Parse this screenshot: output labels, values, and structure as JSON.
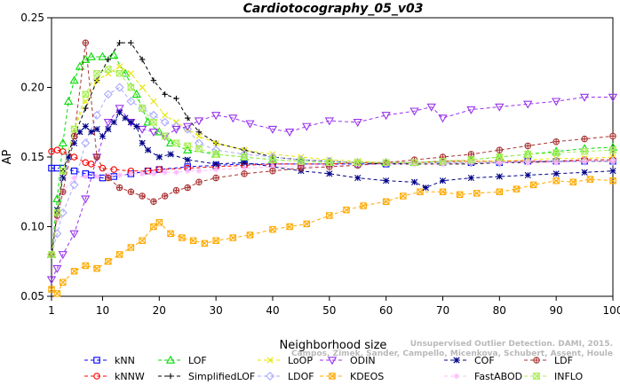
{
  "chart_data": {
    "type": "line",
    "title": "Cardiotocography_05_v03",
    "xlabel": "Neighborhood size",
    "ylabel": "AP",
    "xlim": [
      1,
      100
    ],
    "ylim": [
      0.05,
      0.25
    ],
    "xticks": [
      1,
      10,
      20,
      30,
      40,
      50,
      60,
      70,
      80,
      90,
      100
    ],
    "yticks": [
      0.05,
      0.1,
      0.15,
      0.2,
      0.25
    ],
    "ytick_labels": [
      "0.05",
      "0.10",
      "0.15",
      "0.20",
      "0.25"
    ],
    "grid": false,
    "legend_position": "bottom",
    "watermark": [
      "Unsupervised Outlier Detection. DAMI, 2015.",
      "Campos, Zimek, Sander, Campello, Micenkova, Schubert, Assent, Houle"
    ],
    "series": [
      {
        "name": "kNN",
        "color": "#0000ff",
        "marker": "square",
        "x": [
          1,
          2,
          3,
          5,
          7,
          8,
          10,
          12,
          15,
          18,
          20,
          25,
          30,
          35,
          40,
          45,
          50,
          55,
          60,
          65,
          70,
          75,
          80,
          85,
          90,
          95,
          100
        ],
        "values": [
          0.142,
          0.142,
          0.142,
          0.14,
          0.138,
          0.137,
          0.135,
          0.136,
          0.138,
          0.14,
          0.141,
          0.143,
          0.144,
          0.145,
          0.145,
          0.145,
          0.145,
          0.145,
          0.145,
          0.146,
          0.146,
          0.146,
          0.146,
          0.147,
          0.147,
          0.147,
          0.147
        ]
      },
      {
        "name": "kNNW",
        "color": "#ff0000",
        "marker": "circle",
        "x": [
          1,
          2,
          3,
          5,
          7,
          8,
          10,
          12,
          15,
          18,
          20,
          25,
          30,
          35,
          40,
          45,
          50,
          55,
          60,
          65,
          70,
          75,
          80,
          85,
          90,
          95,
          100
        ],
        "values": [
          0.154,
          0.155,
          0.154,
          0.15,
          0.146,
          0.145,
          0.142,
          0.141,
          0.14,
          0.14,
          0.141,
          0.142,
          0.143,
          0.144,
          0.145,
          0.145,
          0.145,
          0.146,
          0.146,
          0.146,
          0.147,
          0.147,
          0.147,
          0.147,
          0.147,
          0.148,
          0.148
        ]
      },
      {
        "name": "LOF",
        "color": "#00dd00",
        "marker": "triangle-up",
        "x": [
          1,
          2,
          3,
          4,
          5,
          6,
          7,
          8,
          10,
          12,
          14,
          16,
          18,
          20,
          22,
          25,
          30,
          35,
          40,
          45,
          50,
          55,
          60,
          65,
          70,
          75,
          80,
          85,
          90,
          95,
          100
        ],
        "values": [
          0.08,
          0.12,
          0.16,
          0.19,
          0.205,
          0.215,
          0.22,
          0.222,
          0.222,
          0.223,
          0.21,
          0.195,
          0.175,
          0.168,
          0.16,
          0.155,
          0.152,
          0.15,
          0.148,
          0.147,
          0.146,
          0.146,
          0.146,
          0.146,
          0.147,
          0.148,
          0.15,
          0.152,
          0.154,
          0.156,
          0.157
        ]
      },
      {
        "name": "SimplifiedLOF",
        "color": "#000000",
        "marker": "plus",
        "x": [
          1,
          2,
          3,
          5,
          7,
          9,
          11,
          13,
          15,
          17,
          19,
          21,
          23,
          25,
          27,
          30,
          35,
          40,
          45,
          50,
          55,
          60,
          65,
          70,
          75,
          80,
          85,
          90,
          95,
          100
        ],
        "values": [
          0.078,
          0.11,
          0.14,
          0.165,
          0.185,
          0.205,
          0.22,
          0.232,
          0.232,
          0.22,
          0.205,
          0.195,
          0.192,
          0.178,
          0.168,
          0.16,
          0.155,
          0.15,
          0.148,
          0.147,
          0.146,
          0.145,
          0.145,
          0.145,
          0.145,
          0.146,
          0.146,
          0.147,
          0.147,
          0.147
        ]
      },
      {
        "name": "LoOP",
        "color": "#e5e500",
        "marker": "x",
        "x": [
          1,
          2,
          3,
          5,
          7,
          9,
          11,
          13,
          15,
          17,
          19,
          21,
          23,
          25,
          27,
          30,
          35,
          40,
          45,
          50,
          55,
          60,
          65,
          70,
          75,
          80,
          85,
          90,
          95,
          100
        ],
        "values": [
          0.08,
          0.11,
          0.14,
          0.17,
          0.19,
          0.205,
          0.21,
          0.215,
          0.21,
          0.2,
          0.19,
          0.18,
          0.175,
          0.17,
          0.165,
          0.16,
          0.155,
          0.152,
          0.15,
          0.148,
          0.147,
          0.146,
          0.146,
          0.146,
          0.147,
          0.147,
          0.148,
          0.149,
          0.149,
          0.15
        ]
      },
      {
        "name": "LDOF",
        "color": "#aaaaff",
        "marker": "diamond",
        "x": [
          1,
          2,
          3,
          5,
          7,
          9,
          11,
          13,
          15,
          17,
          19,
          21,
          23,
          25,
          27,
          30,
          35,
          40,
          45,
          50,
          55,
          60,
          65,
          70,
          75,
          80,
          85,
          90,
          95,
          100
        ],
        "values": [
          0.08,
          0.095,
          0.11,
          0.13,
          0.16,
          0.18,
          0.195,
          0.2,
          0.19,
          0.185,
          0.18,
          0.175,
          0.172,
          0.17,
          0.16,
          0.155,
          0.152,
          0.15,
          0.148,
          0.147,
          0.146,
          0.146,
          0.146,
          0.146,
          0.146,
          0.146,
          0.147,
          0.147,
          0.147,
          0.147
        ]
      },
      {
        "name": "ODIN",
        "color": "#9933ee",
        "marker": "triangle-down",
        "x": [
          1,
          2,
          3,
          5,
          7,
          9,
          11,
          13,
          15,
          17,
          19,
          21,
          23,
          25,
          27,
          30,
          33,
          36,
          40,
          43,
          46,
          50,
          55,
          60,
          65,
          68,
          70,
          75,
          80,
          85,
          90,
          95,
          100
        ],
        "values": [
          0.062,
          0.07,
          0.08,
          0.095,
          0.12,
          0.15,
          0.175,
          0.185,
          0.175,
          0.17,
          0.168,
          0.165,
          0.17,
          0.172,
          0.176,
          0.18,
          0.178,
          0.174,
          0.17,
          0.168,
          0.172,
          0.176,
          0.175,
          0.18,
          0.183,
          0.186,
          0.178,
          0.184,
          0.186,
          0.188,
          0.19,
          0.193,
          0.193
        ]
      },
      {
        "name": "KDEOS",
        "color": "#ffaa00",
        "marker": "square-x",
        "x": [
          1,
          2,
          3,
          5,
          7,
          9,
          11,
          13,
          15,
          17,
          19,
          20,
          22,
          24,
          26,
          28,
          30,
          33,
          36,
          40,
          43,
          46,
          50,
          53,
          56,
          60,
          63,
          66,
          70,
          73,
          76,
          80,
          83,
          86,
          90,
          93,
          96,
          100
        ],
        "values": [
          0.055,
          0.052,
          0.06,
          0.068,
          0.072,
          0.07,
          0.075,
          0.08,
          0.085,
          0.09,
          0.1,
          0.103,
          0.095,
          0.092,
          0.09,
          0.088,
          0.09,
          0.092,
          0.094,
          0.098,
          0.1,
          0.102,
          0.108,
          0.112,
          0.115,
          0.118,
          0.122,
          0.125,
          0.125,
          0.123,
          0.124,
          0.125,
          0.127,
          0.13,
          0.133,
          0.132,
          0.134,
          0.133
        ]
      },
      {
        "name": "COF",
        "color": "#000088",
        "marker": "asterisk",
        "x": [
          1,
          2,
          3,
          4,
          5,
          6,
          7,
          8,
          9,
          10,
          11,
          12,
          13,
          14,
          15,
          16,
          17,
          18,
          20,
          22,
          25,
          30,
          35,
          40,
          45,
          50,
          55,
          60,
          65,
          67,
          70,
          75,
          80,
          85,
          90,
          95,
          100
        ],
        "values": [
          0.08,
          0.112,
          0.135,
          0.15,
          0.16,
          0.168,
          0.172,
          0.168,
          0.17,
          0.165,
          0.17,
          0.175,
          0.182,
          0.178,
          0.175,
          0.172,
          0.16,
          0.155,
          0.15,
          0.152,
          0.148,
          0.145,
          0.146,
          0.143,
          0.14,
          0.138,
          0.135,
          0.133,
          0.132,
          0.128,
          0.133,
          0.135,
          0.136,
          0.137,
          0.138,
          0.139,
          0.14
        ]
      },
      {
        "name": "FastABOD",
        "color": "#ffbbff",
        "marker": "star",
        "x": [
          1,
          2,
          3,
          5,
          7,
          9,
          11,
          13,
          15,
          17,
          19,
          21,
          23,
          25,
          27,
          30,
          35,
          40,
          45,
          50,
          55,
          60,
          65,
          70,
          75,
          80,
          85,
          90,
          95,
          100
        ],
        "values": [
          0.08,
          0.105,
          0.125,
          0.135,
          0.136,
          0.136,
          0.137,
          0.137,
          0.138,
          0.138,
          0.138,
          0.139,
          0.139,
          0.14,
          0.14,
          0.141,
          0.142,
          0.143,
          0.143,
          0.144,
          0.144,
          0.145,
          0.145,
          0.145,
          0.146,
          0.146,
          0.146,
          0.146,
          0.147,
          0.147
        ]
      },
      {
        "name": "LDF",
        "color": "#aa3333",
        "marker": "circle-plus",
        "x": [
          1,
          2,
          3,
          5,
          7,
          9,
          11,
          13,
          15,
          17,
          19,
          21,
          23,
          25,
          27,
          30,
          35,
          40,
          45,
          50,
          55,
          60,
          65,
          70,
          75,
          80,
          85,
          90,
          95,
          100
        ],
        "values": [
          0.08,
          0.108,
          0.125,
          0.165,
          0.232,
          0.15,
          0.135,
          0.128,
          0.125,
          0.122,
          0.118,
          0.122,
          0.126,
          0.128,
          0.132,
          0.135,
          0.138,
          0.14,
          0.142,
          0.143,
          0.144,
          0.146,
          0.148,
          0.15,
          0.152,
          0.155,
          0.158,
          0.161,
          0.163,
          0.165
        ]
      },
      {
        "name": "INFLO",
        "color": "#aaee55",
        "marker": "hourglass",
        "x": [
          1,
          2,
          3,
          5,
          7,
          9,
          11,
          13,
          15,
          17,
          19,
          21,
          23,
          25,
          27,
          30,
          35,
          40,
          45,
          50,
          55,
          60,
          65,
          70,
          75,
          80,
          85,
          90,
          95,
          100
        ],
        "values": [
          0.08,
          0.11,
          0.14,
          0.17,
          0.195,
          0.21,
          0.213,
          0.21,
          0.2,
          0.185,
          0.175,
          0.165,
          0.16,
          0.158,
          0.156,
          0.152,
          0.15,
          0.148,
          0.147,
          0.146,
          0.146,
          0.146,
          0.146,
          0.147,
          0.148,
          0.15,
          0.152,
          0.153,
          0.154,
          0.155
        ]
      }
    ]
  }
}
